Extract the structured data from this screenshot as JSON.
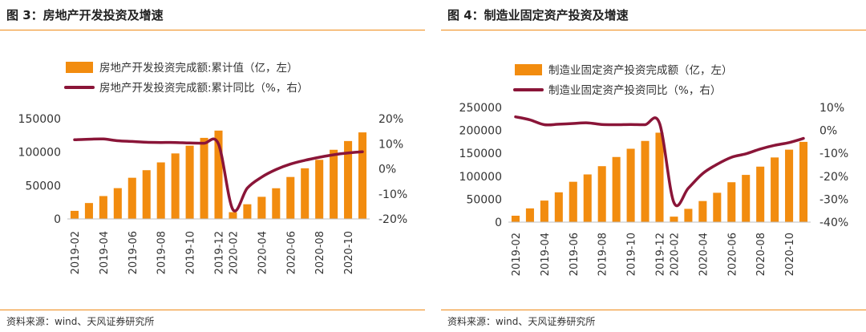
{
  "colors": {
    "bar": "#f28c0f",
    "line": "#8a1538",
    "rule": "#f08a17"
  },
  "charts": [
    {
      "title": "图 3：房地产开发投资及增速",
      "source": "资料来源：wind、天风证券研究所",
      "chart_data": {
        "type": "bar+line",
        "x": [
          "2019-02",
          "2019-03",
          "2019-04",
          "2019-05",
          "2019-06",
          "2019-07",
          "2019-08",
          "2019-09",
          "2019-10",
          "2019-11",
          "2019-12",
          "2020-02",
          "2020-03",
          "2020-04",
          "2020-05",
          "2020-06",
          "2020-07",
          "2020-08",
          "2020-09",
          "2020-10",
          "2020-11"
        ],
        "x_tick_labels": [
          "2019-02",
          "2019-04",
          "2019-06",
          "2019-08",
          "2019-10",
          "2019-12",
          "2020-02",
          "2020-04",
          "2020-06",
          "2020-08",
          "2020-10"
        ],
        "series": [
          {
            "name": "房地产开发投资完成额:累计值（亿，左）",
            "type": "bar",
            "axis": "left",
            "values": [
              12090,
              23800,
              34220,
              46070,
              61610,
              72930,
              84590,
              98010,
              109600,
              121300,
              132200,
              10120,
              21960,
              33100,
              45920,
              62780,
              75800,
              88450,
              103480,
              116560,
              129490
            ]
          },
          {
            "name": "房地产开发投资完成额:累计同比（%，右）",
            "type": "line",
            "axis": "right",
            "values": [
              11.6,
              11.8,
              11.9,
              11.2,
              10.9,
              10.6,
              10.5,
              10.5,
              10.3,
              10.2,
              9.9,
              -16.3,
              -7.7,
              -3.3,
              -0.3,
              1.9,
              3.4,
              4.6,
              5.6,
              6.3,
              6.8
            ]
          }
        ],
        "y_left": {
          "ticks": [
            "0",
            "50000",
            "100000",
            "150000"
          ],
          "range": [
            0,
            150000
          ]
        },
        "y_right": {
          "ticks": [
            "-20%",
            "-10%",
            "0%",
            "10%",
            "20%"
          ],
          "range": [
            -20,
            20
          ]
        }
      }
    },
    {
      "title": "图 4：制造业固定资产投资及增速",
      "source": "资料来源：wind、天风证券研究所",
      "chart_data": {
        "type": "bar+line",
        "x": [
          "2019-02",
          "2019-03",
          "2019-04",
          "2019-05",
          "2019-06",
          "2019-07",
          "2019-08",
          "2019-09",
          "2019-10",
          "2019-11",
          "2019-12",
          "2020-02",
          "2020-03",
          "2020-04",
          "2020-05",
          "2020-06",
          "2020-07",
          "2020-08",
          "2020-09",
          "2020-10",
          "2020-11"
        ],
        "x_tick_labels": [
          "2019-02",
          "2019-04",
          "2019-06",
          "2019-08",
          "2019-10",
          "2019-12",
          "2020-02",
          "2020-04",
          "2020-06",
          "2020-08",
          "2020-10"
        ],
        "series": [
          {
            "name": "制造业固定资产投资完成额（亿，左）",
            "type": "bar",
            "axis": "left",
            "values": [
              14000,
              30000,
              47000,
              65000,
              88000,
              104000,
              122000,
              142000,
              160000,
              177000,
              195000,
              12000,
              29000,
              46000,
              64000,
              87000,
              103000,
              121000,
              141000,
              158000,
              175000
            ]
          },
          {
            "name": "制造业固定资产投资同比（%，右）",
            "type": "line",
            "axis": "right",
            "values": [
              5.9,
              4.6,
              2.5,
              2.7,
              3.0,
              3.3,
              2.6,
              2.5,
              2.6,
              2.5,
              3.1,
              -31.5,
              -25.2,
              -18.8,
              -14.8,
              -11.7,
              -10.2,
              -8.1,
              -6.5,
              -5.3,
              -3.5
            ]
          }
        ],
        "y_left": {
          "ticks": [
            "0",
            "50000",
            "100000",
            "150000",
            "200000",
            "250000"
          ],
          "range": [
            0,
            250000
          ]
        },
        "y_right": {
          "ticks": [
            "-40%",
            "-30%",
            "-20%",
            "-10%",
            "0%",
            "10%"
          ],
          "range": [
            -40,
            10
          ]
        }
      }
    }
  ]
}
